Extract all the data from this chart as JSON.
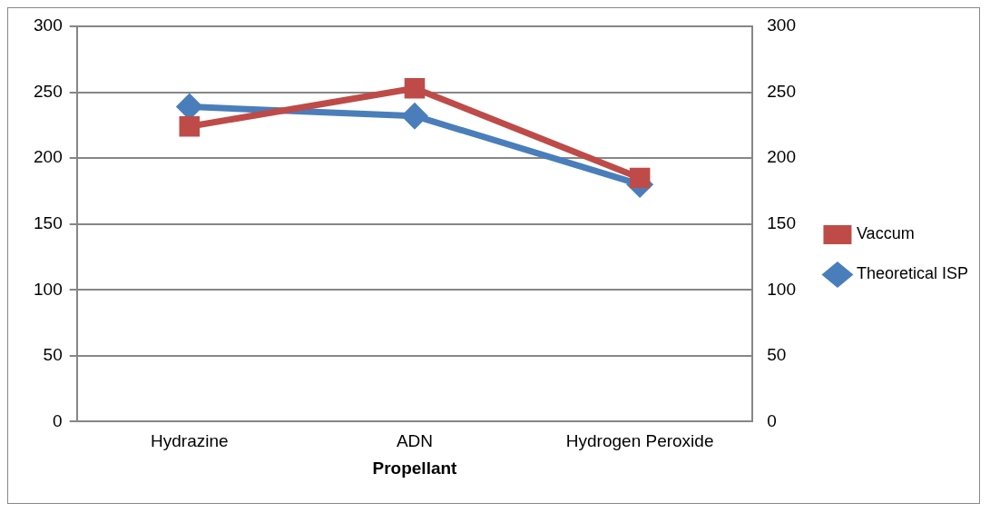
{
  "chart_data": {
    "type": "line",
    "xlabel": "Propellant",
    "categories": [
      "Hydrazine",
      "ADN",
      "Hydrogen Peroxide"
    ],
    "series": [
      {
        "name": "Theoretical ISP",
        "color": "#4a7ebb",
        "values": [
          239,
          232,
          180
        ],
        "marker": "diamond"
      },
      {
        "name": "Vaccum",
        "color": "#be4b48",
        "values": [
          224,
          253,
          185
        ],
        "marker": "square"
      }
    ],
    "ylim": [
      0,
      300
    ],
    "yticks": [
      0,
      50,
      100,
      150,
      200,
      250,
      300
    ],
    "y2lim": [
      0,
      300
    ],
    "y2ticks": [
      0,
      50,
      100,
      150,
      200,
      250,
      300
    ],
    "grid": "y",
    "legend": "right",
    "line_style": "solid"
  }
}
